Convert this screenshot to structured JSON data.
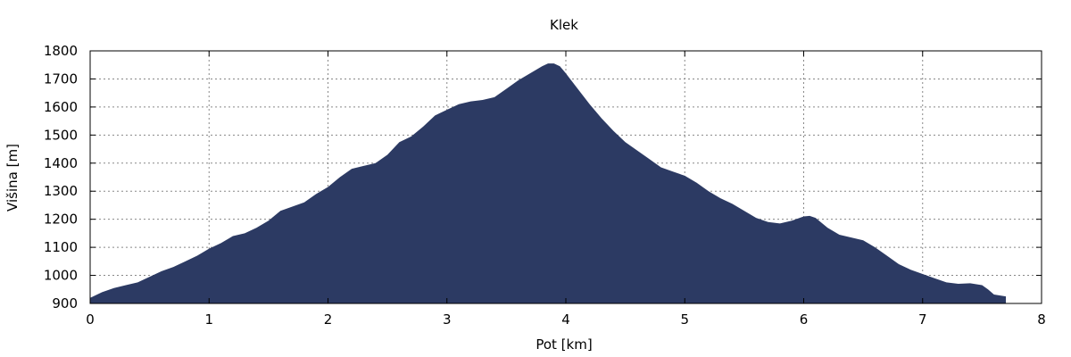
{
  "chart_data": {
    "type": "area",
    "title": "Klek",
    "xlabel": "Pot [km]",
    "ylabel": "Višina [m]",
    "xlim": [
      0,
      8
    ],
    "ylim": [
      900,
      1800
    ],
    "xticks": [
      "0",
      "1",
      "2",
      "3",
      "4",
      "5",
      "6",
      "7",
      "8"
    ],
    "yticks": [
      "900",
      "1000",
      "1100",
      "1200",
      "1300",
      "1400",
      "1500",
      "1600",
      "1700",
      "1800"
    ],
    "grid": true,
    "colors": {
      "fill": "#2c3a63"
    },
    "series": [
      {
        "x": [
          0,
          0.1,
          0.2,
          0.3,
          0.4,
          0.5,
          0.6,
          0.7,
          0.8,
          0.9,
          1.0,
          1.1,
          1.2,
          1.3,
          1.4,
          1.5,
          1.6,
          1.7,
          1.8,
          1.9,
          2.0,
          2.1,
          2.2,
          2.3,
          2.4,
          2.5,
          2.6,
          2.7,
          2.8,
          2.9,
          3.0,
          3.1,
          3.2,
          3.3,
          3.4,
          3.5,
          3.6,
          3.7,
          3.8,
          3.85,
          3.9,
          3.95,
          4.0,
          4.1,
          4.2,
          4.3,
          4.4,
          4.5,
          4.6,
          4.7,
          4.8,
          4.9,
          5.0,
          5.1,
          5.2,
          5.3,
          5.4,
          5.5,
          5.6,
          5.7,
          5.8,
          5.9,
          6.0,
          6.05,
          6.1,
          6.2,
          6.3,
          6.4,
          6.5,
          6.6,
          6.7,
          6.8,
          6.9,
          7.0,
          7.1,
          7.2,
          7.3,
          7.4,
          7.5,
          7.55,
          7.6,
          7.7
        ],
        "y": [
          920,
          940,
          955,
          965,
          975,
          995,
          1015,
          1030,
          1050,
          1070,
          1095,
          1115,
          1140,
          1150,
          1170,
          1195,
          1230,
          1245,
          1260,
          1290,
          1315,
          1350,
          1380,
          1390,
          1400,
          1430,
          1475,
          1495,
          1530,
          1570,
          1590,
          1610,
          1620,
          1625,
          1635,
          1665,
          1695,
          1720,
          1745,
          1755,
          1755,
          1745,
          1720,
          1665,
          1610,
          1560,
          1515,
          1475,
          1445,
          1415,
          1385,
          1370,
          1355,
          1330,
          1300,
          1275,
          1255,
          1230,
          1205,
          1190,
          1185,
          1195,
          1210,
          1212,
          1205,
          1170,
          1145,
          1135,
          1125,
          1100,
          1070,
          1040,
          1020,
          1005,
          990,
          975,
          970,
          972,
          965,
          950,
          932,
          925
        ]
      }
    ]
  }
}
